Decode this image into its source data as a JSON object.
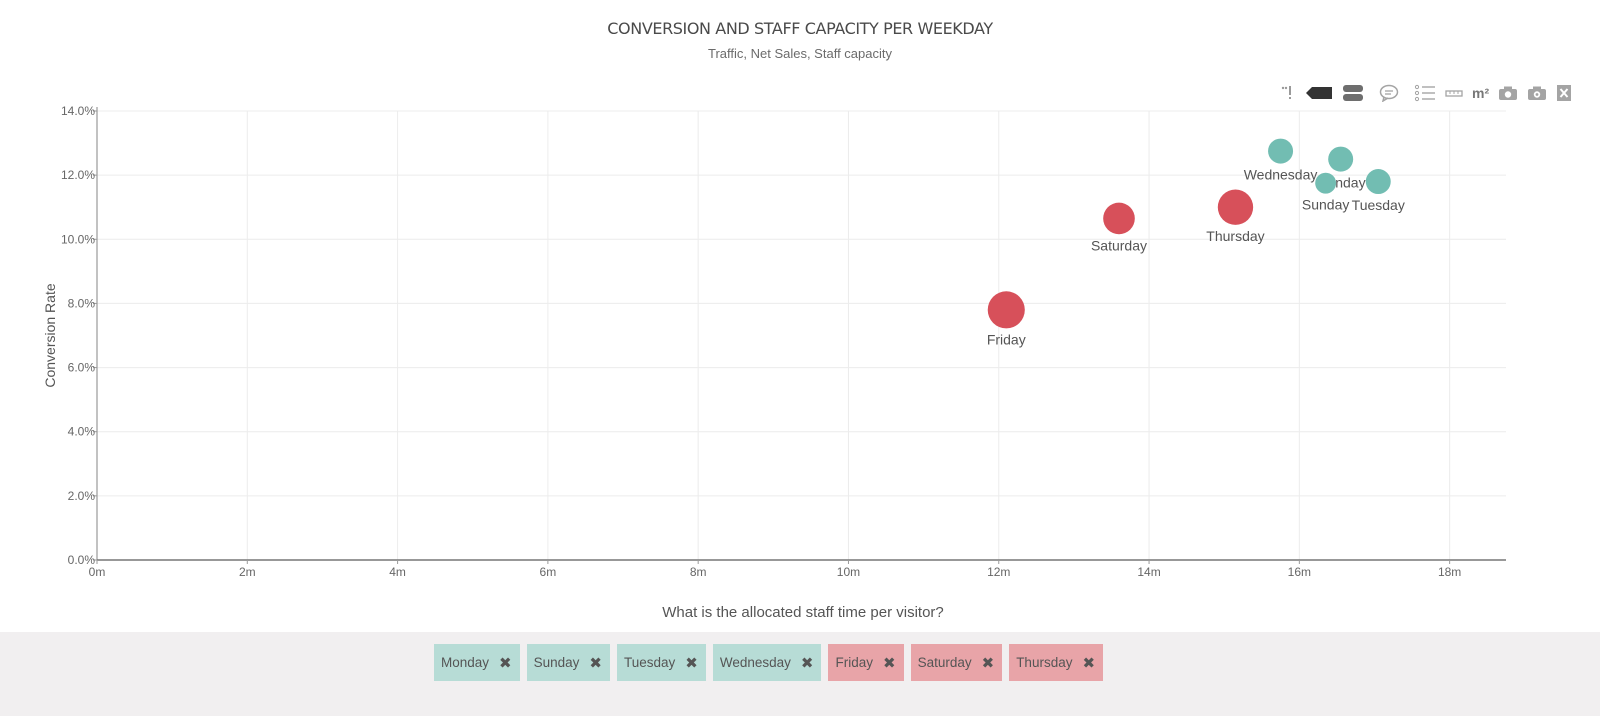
{
  "colors": {
    "teal": "#72bdb2",
    "red": "#d7505a",
    "teal_chip": "#b7dcd6",
    "red_chip": "#e8a4a8"
  },
  "toolbar": {
    "icons": [
      "pin-icon",
      "tag-icon",
      "stack-icon",
      "comment-icon",
      "list-icon",
      "ruler-icon",
      "m2-icon",
      "camera-icon",
      "camera-alt-icon",
      "excel-export-icon"
    ],
    "m2_label": "m²"
  },
  "chart_data": {
    "type": "scatter",
    "title": "CONVERSION AND STAFF CAPACITY PER WEEKDAY",
    "subtitle": "Traffic, Net Sales, Staff capacity",
    "xlabel": "What is the allocated staff time per visitor?",
    "ylabel": "Conversion Rate",
    "xlim": [
      0,
      18.75
    ],
    "ylim": [
      0,
      14
    ],
    "xticks": [
      0,
      2,
      4,
      6,
      8,
      10,
      12,
      14,
      16,
      18
    ],
    "xtick_labels": [
      "0m",
      "2m",
      "4m",
      "6m",
      "8m",
      "10m",
      "12m",
      "14m",
      "16m",
      "18m"
    ],
    "yticks": [
      0,
      2,
      4,
      6,
      8,
      10,
      12,
      14
    ],
    "ytick_labels": [
      "0.0%",
      "2.0%",
      "4.0%",
      "6.0%",
      "8.0%",
      "10.0%",
      "12.0%",
      "14.0%"
    ],
    "grid": true,
    "points": [
      {
        "label": "Wednesday",
        "x": 15.75,
        "y": 12.75,
        "size": 1,
        "group": "teal"
      },
      {
        "label": "Monday",
        "x": 16.55,
        "y": 12.5,
        "size": 1,
        "group": "teal"
      },
      {
        "label": "Sunday",
        "x": 16.35,
        "y": 11.75,
        "size": 0.7,
        "group": "teal"
      },
      {
        "label": "Tuesday",
        "x": 17.05,
        "y": 11.8,
        "size": 1,
        "group": "teal"
      },
      {
        "label": "Saturday",
        "x": 13.6,
        "y": 10.65,
        "size": 1.6,
        "group": "red"
      },
      {
        "label": "Thursday",
        "x": 15.15,
        "y": 11.0,
        "size": 2,
        "group": "red"
      },
      {
        "label": "Friday",
        "x": 12.1,
        "y": 7.8,
        "size": 2.2,
        "group": "red"
      }
    ]
  },
  "legend": [
    {
      "label": "Monday",
      "group": "teal"
    },
    {
      "label": "Sunday",
      "group": "teal"
    },
    {
      "label": "Tuesday",
      "group": "teal"
    },
    {
      "label": "Wednesday",
      "group": "teal"
    },
    {
      "label": "Friday",
      "group": "red"
    },
    {
      "label": "Saturday",
      "group": "red"
    },
    {
      "label": "Thursday",
      "group": "red"
    }
  ]
}
